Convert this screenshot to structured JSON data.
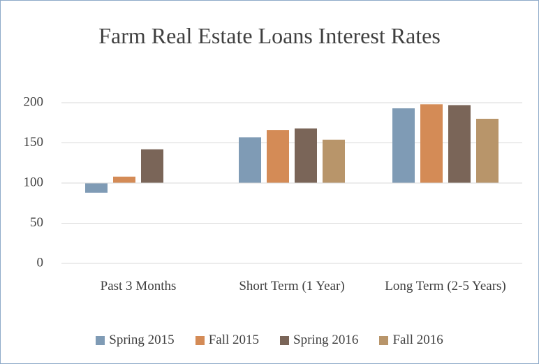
{
  "chart_data": {
    "type": "bar",
    "title": "Farm Real Estate Loans Interest Rates",
    "categories": [
      "Past 3 Months",
      "Short Term (1 Year)",
      "Long Term (2-5 Years)"
    ],
    "series": [
      {
        "name": "Spring 2015",
        "color": "#7f9bb5",
        "values": [
          88,
          157,
          193
        ]
      },
      {
        "name": "Fall 2015",
        "color": "#d48b56",
        "values": [
          108,
          166,
          198
        ]
      },
      {
        "name": "Spring 2016",
        "color": "#7a6558",
        "values": [
          142,
          168,
          197
        ]
      },
      {
        "name": "Fall 2016",
        "color": "#b8956a",
        "values": [
          null,
          154,
          180
        ]
      }
    ],
    "ylim": [
      0,
      200
    ],
    "yticks": [
      0,
      50,
      100,
      150,
      200
    ],
    "grid": true,
    "x_axis_crosses": 100,
    "legend": "bottom"
  }
}
